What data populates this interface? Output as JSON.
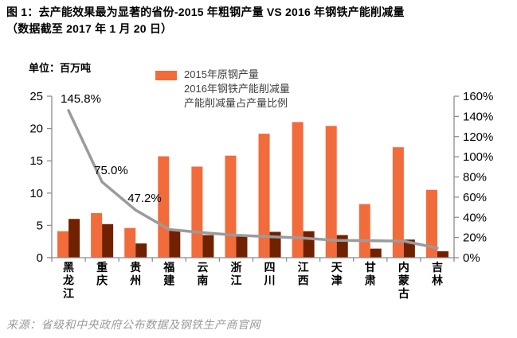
{
  "header": {
    "title_line1": "图 1：去产能效果最为显著的省份-2015 年粗钢产量 VS 2016 年钢铁产能削减量",
    "title_line2": "（数据截至 2017 年 1 月 20 日）",
    "unit_label": "单位：百万吨"
  },
  "legend": {
    "items": [
      "2015年原钢产量",
      "2016年钢铁产能削减量",
      "产能削减量占产量比例"
    ]
  },
  "footer": {
    "source": "来源：省级和中央政府公布数据及钢铁生产商官网"
  },
  "colors": {
    "production_bar": "#F26B3B",
    "reduction_bar": "#702100",
    "ratio_line": "#9B9B9B",
    "axis": "#8C8C8C",
    "axis_text": "#000000",
    "category_text": "#000000",
    "point_label_text": "#000000"
  },
  "chart_data": {
    "type": "bar+line",
    "title": "去产能效果最为显著的省份-2015 年粗钢产量 VS 2016 年钢铁产能削减量",
    "unit": "百万吨",
    "grid": "off",
    "legend_position": "top",
    "categories": [
      "黑龙江",
      "重庆",
      "贵州",
      "福建",
      "云南",
      "浙江",
      "四川",
      "江西",
      "天津",
      "甘肃",
      "内蒙古",
      "吉林"
    ],
    "series": [
      {
        "name": "2015年原钢产量",
        "type": "bar",
        "axis": "left",
        "values": [
          4.1,
          6.9,
          4.6,
          15.7,
          14.1,
          15.8,
          19.2,
          21.0,
          20.4,
          8.3,
          17.1,
          10.5
        ]
      },
      {
        "name": "2016年钢铁产能削减量",
        "type": "bar",
        "axis": "left",
        "values": [
          6.0,
          5.2,
          2.2,
          4.4,
          3.5,
          3.5,
          4.0,
          4.1,
          3.5,
          1.4,
          2.8,
          1.0
        ]
      },
      {
        "name": "产能削减量占产量比例",
        "type": "line",
        "axis": "right",
        "values": [
          145.8,
          75.0,
          47.2,
          28.0,
          24.8,
          22.2,
          20.8,
          19.5,
          17.2,
          16.9,
          16.4,
          9.5
        ]
      }
    ],
    "point_labels": [
      {
        "category_index": 0,
        "text": "145.8%"
      },
      {
        "category_index": 1,
        "text": "75.0%"
      },
      {
        "category_index": 2,
        "text": "47.2%"
      }
    ],
    "left_axis": {
      "min": 0,
      "max": 25,
      "tick_labels": [
        "0",
        "5",
        "10",
        "15",
        "20",
        "25"
      ]
    },
    "right_axis": {
      "min": 0,
      "max": 160,
      "tick_labels": [
        "0%",
        "20%",
        "40%",
        "60%",
        "80%",
        "100%",
        "120%",
        "140%",
        "160%"
      ]
    }
  }
}
